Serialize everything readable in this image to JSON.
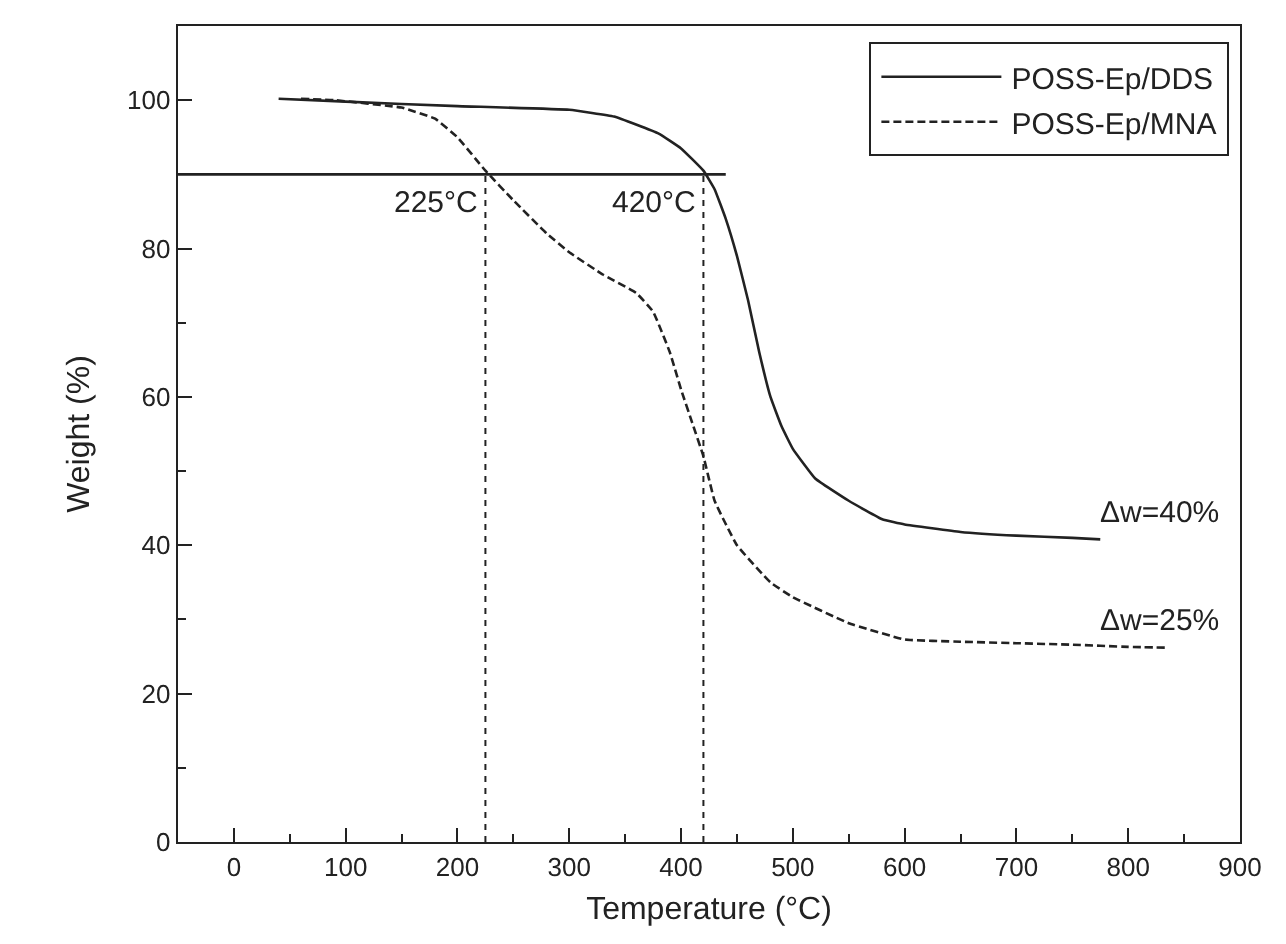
{
  "chart_data": {
    "type": "line",
    "xlabel": "Temperature (°C)",
    "ylabel": "Weight (%)",
    "xlim": [
      -50,
      900
    ],
    "ylim": [
      0,
      110
    ],
    "xticks": [
      {
        "value": -50,
        "label": null
      },
      0,
      {
        "value": 50,
        "label": null
      },
      100,
      {
        "value": 150,
        "label": null
      },
      200,
      {
        "value": 250,
        "label": null
      },
      300,
      {
        "value": 350,
        "label": null
      },
      400,
      {
        "value": 450,
        "label": null
      },
      500,
      {
        "value": 550,
        "label": null
      },
      600,
      {
        "value": 650,
        "label": null
      },
      700,
      {
        "value": 750,
        "label": null
      },
      800,
      {
        "value": 850,
        "label": null
      },
      900
    ],
    "yticks": [
      0,
      {
        "value": 10,
        "label": null
      },
      20,
      {
        "value": 30,
        "label": null
      },
      40,
      {
        "value": 50,
        "label": null
      },
      60,
      {
        "value": 70,
        "label": null
      },
      80,
      {
        "value": 90,
        "label": null
      },
      100
    ],
    "legend": "top right",
    "marker": "none",
    "series": [
      {
        "name": "POSS-Ep/DDS",
        "color": "#222222",
        "line_style": "solid",
        "x": [
          40,
          100,
          200,
          300,
          340,
          380,
          400,
          420,
          430,
          440,
          450,
          460,
          470,
          480,
          490,
          500,
          520,
          550,
          580,
          600,
          650,
          700,
          750,
          775
        ],
        "values": [
          100.2,
          99.8,
          99.2,
          98.7,
          97.8,
          95.5,
          93.5,
          90.5,
          88,
          84,
          79,
          73,
          66,
          60,
          56,
          53,
          49,
          46,
          43.5,
          42.8,
          41.8,
          41.3,
          41,
          40.8
        ]
      },
      {
        "name": "POSS-Ep/MNA",
        "color": "#222222",
        "line_style": "dashed",
        "x": [
          60,
          90,
          150,
          180,
          200,
          225,
          250,
          280,
          300,
          330,
          360,
          375,
          390,
          400,
          410,
          420,
          430,
          450,
          480,
          500,
          550,
          600,
          650,
          700,
          750,
          800,
          835
        ],
        "values": [
          100.2,
          100,
          99,
          97.5,
          95,
          90.5,
          86.5,
          82,
          79.5,
          76.5,
          74,
          71.5,
          66,
          61,
          56.5,
          52,
          46,
          40,
          35,
          33,
          29.5,
          27.3,
          27,
          26.8,
          26.6,
          26.3,
          26.2
        ]
      }
    ],
    "ref_lines": [
      {
        "axis": "y",
        "value": 90,
        "label": null,
        "color": "#222222",
        "line_style": "solid"
      },
      {
        "axis": "x",
        "value": 225,
        "label": "225°C",
        "color": "#222222",
        "line_style": "dotted"
      },
      {
        "axis": "x",
        "value": 420,
        "label": "420°C",
        "color": "#222222",
        "line_style": "dotted"
      }
    ],
    "annotations": [
      "Δw=40%",
      "Δw=25%"
    ]
  }
}
